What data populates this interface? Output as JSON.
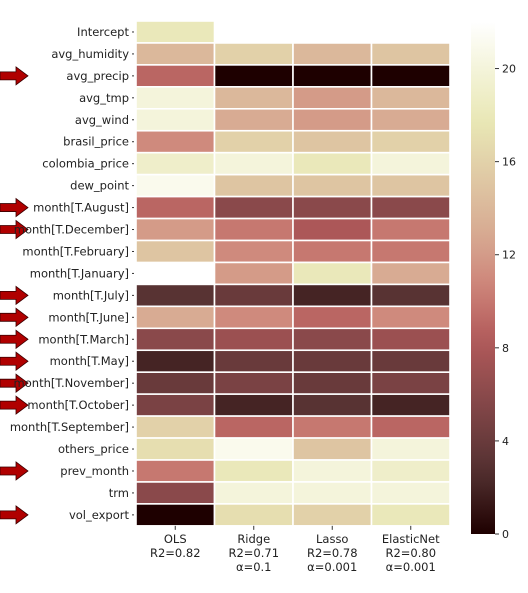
{
  "chart_data": {
    "type": "heatmap",
    "rows": [
      "Intercept",
      "avg_humidity",
      "avg_precip",
      "avg_tmp",
      "avg_wind",
      "brasil_price",
      "colombia_price",
      "dew_point",
      "month[T.August]",
      "month[T.December]",
      "month[T.February]",
      "month[T.January]",
      "month[T.July]",
      "month[T.June]",
      "month[T.March]",
      "month[T.May]",
      "month[T.November]",
      "month[T.October]",
      "month[T.September]",
      "others_price",
      "prev_month",
      "trm",
      "vol_export"
    ],
    "columns": [
      {
        "name": "OLS",
        "r2": "R2=0.82",
        "alpha": ""
      },
      {
        "name": "Ridge",
        "r2": "R2=0.71",
        "alpha": "α=0.1"
      },
      {
        "name": "Lasso",
        "r2": "R2=0.78",
        "alpha": "α=0.001"
      },
      {
        "name": "ElasticNet",
        "r2": "R2=0.80",
        "alpha": "α=0.001"
      }
    ],
    "values": [
      [
        18,
        null,
        null,
        null
      ],
      [
        14,
        16,
        14,
        15
      ],
      [
        9,
        0,
        0,
        0
      ],
      [
        20,
        14,
        12,
        14
      ],
      [
        20,
        13,
        12,
        13
      ],
      [
        11,
        16,
        15,
        16
      ],
      [
        19,
        20,
        18,
        20
      ],
      [
        21,
        15,
        15,
        15
      ],
      [
        9,
        6,
        6,
        6
      ],
      [
        12,
        10,
        8,
        10
      ],
      [
        15,
        11,
        10,
        10
      ],
      [
        null,
        12,
        18,
        13
      ],
      [
        3,
        4,
        2,
        3
      ],
      [
        13,
        11,
        9,
        11
      ],
      [
        6,
        7,
        6,
        7
      ],
      [
        2,
        4,
        4,
        4
      ],
      [
        4,
        5,
        4,
        5
      ],
      [
        5,
        2,
        3,
        2
      ],
      [
        16,
        9,
        10,
        9
      ],
      [
        17,
        21,
        15,
        20
      ],
      [
        10,
        18,
        20,
        19
      ],
      [
        6,
        20,
        20,
        20
      ],
      [
        0,
        17,
        16,
        18
      ]
    ],
    "colorbar": {
      "min": 0,
      "max": 22,
      "ticks": [
        0,
        4,
        8,
        12,
        16,
        20
      ],
      "colormap": "pink"
    },
    "highlighted_rows": [
      "avg_precip",
      "month[T.August]",
      "month[T.December]",
      "month[T.July]",
      "month[T.June]",
      "month[T.March]",
      "month[T.May]",
      "month[T.November]",
      "month[T.October]",
      "prev_month",
      "vol_export"
    ],
    "arrow_color": "#b00000"
  }
}
